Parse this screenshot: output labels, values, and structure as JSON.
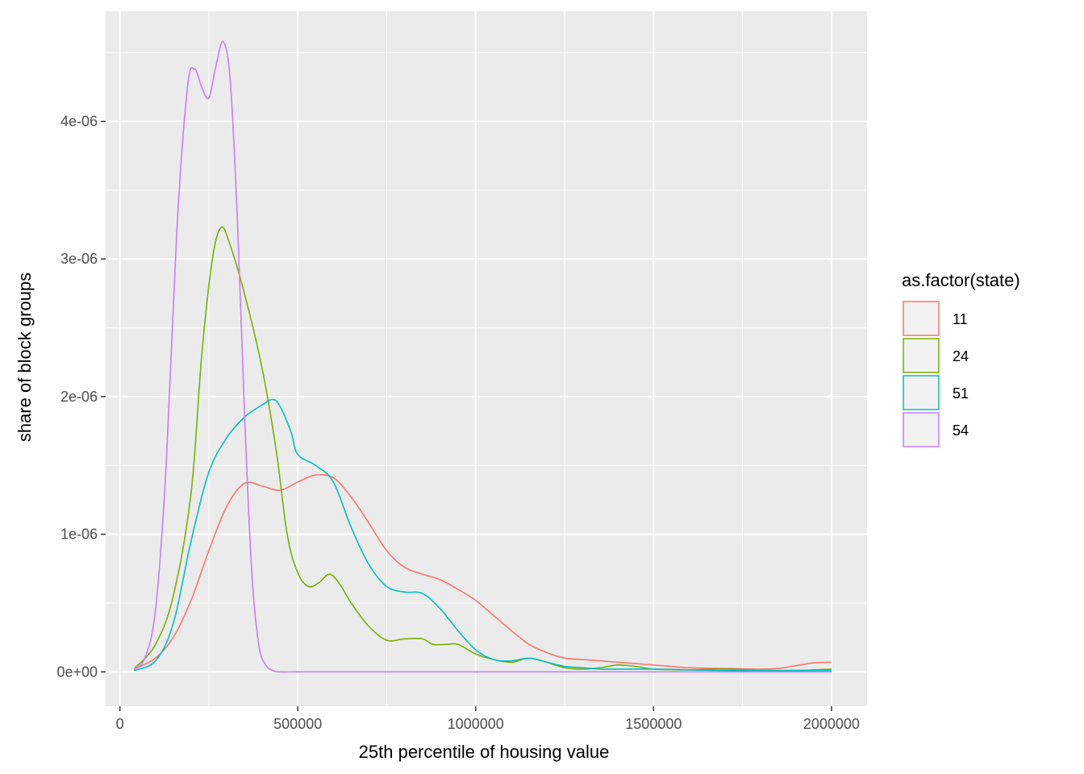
{
  "chart_data": {
    "type": "line",
    "xlabel": "25th percentile of housing value",
    "ylabel": "share of block groups",
    "xlim": [
      -40000,
      2100000
    ],
    "ylim": [
      -2.5e-07,
      4.8e-06
    ],
    "x_ticks": [
      0,
      500000,
      1000000,
      1500000,
      2000000
    ],
    "x_tick_labels": [
      "0",
      "500000",
      "1000000",
      "1500000",
      "2000000"
    ],
    "y_ticks": [
      0,
      1e-06,
      2e-06,
      3e-06,
      4e-06
    ],
    "y_tick_labels": [
      "0e+00",
      "1e-06",
      "2e-06",
      "3e-06",
      "4e-06"
    ],
    "grid": true,
    "legend": {
      "title": "as.factor(state)",
      "position": "right"
    },
    "series": [
      {
        "name": "11",
        "color": "#F8766D",
        "x": [
          40000,
          100000,
          150000,
          200000,
          250000,
          300000,
          350000,
          400000,
          450000,
          500000,
          550000,
          600000,
          650000,
          700000,
          750000,
          800000,
          850000,
          900000,
          950000,
          1000000,
          1050000,
          1100000,
          1150000,
          1200000,
          1250000,
          1300000,
          1350000,
          1400000,
          1450000,
          1500000,
          1600000,
          1700000,
          1800000,
          1850000,
          1900000,
          1950000,
          2000000
        ],
        "y": [
          2e-08,
          1e-07,
          2.5e-07,
          5.2e-07,
          8.8e-07,
          1.2e-06,
          1.37e-06,
          1.35e-06,
          1.32e-06,
          1.38e-06,
          1.43e-06,
          1.41e-06,
          1.27e-06,
          1.08e-06,
          8.8e-07,
          7.6e-07,
          7.1e-07,
          6.7e-07,
          6e-07,
          5.2e-07,
          4.1e-07,
          3e-07,
          2e-07,
          1.4e-07,
          1e-07,
          9e-08,
          8e-08,
          7e-08,
          6e-08,
          5e-08,
          3e-08,
          2.5e-08,
          2e-08,
          2.5e-08,
          4.5e-08,
          6.5e-08,
          7e-08
        ]
      },
      {
        "name": "24",
        "color": "#7CAE00",
        "x": [
          40000,
          100000,
          150000,
          200000,
          230000,
          260000,
          285000,
          310000,
          350000,
          400000,
          440000,
          470000,
          500000,
          530000,
          560000,
          590000,
          620000,
          650000,
          700000,
          750000,
          800000,
          850000,
          880000,
          920000,
          950000,
          1000000,
          1050000,
          1100000,
          1150000,
          1200000,
          1250000,
          1300000,
          1350000,
          1400000,
          1450000,
          1500000,
          1600000,
          1700000,
          1800000,
          1900000,
          2000000
        ],
        "y": [
          2e-08,
          2e-07,
          5.5e-07,
          1.3e-06,
          2.3e-06,
          3e-06,
          3.23e-06,
          3.1e-06,
          2.75e-06,
          2.2e-06,
          1.6e-06,
          1e-06,
          7.2e-07,
          6.2e-07,
          6.5e-07,
          7.1e-07,
          6.3e-07,
          5e-07,
          3.3e-07,
          2.3e-07,
          2.4e-07,
          2.4e-07,
          2e-07,
          2e-07,
          2e-07,
          1.3e-07,
          9e-08,
          7e-08,
          1e-07,
          7e-08,
          3e-08,
          2e-08,
          3e-08,
          5e-08,
          4e-08,
          2e-08,
          1.5e-08,
          2e-08,
          1e-08,
          1e-08,
          2e-08
        ]
      },
      {
        "name": "51",
        "color": "#00BFC4",
        "x": [
          40000,
          100000,
          150000,
          200000,
          250000,
          300000,
          350000,
          400000,
          430000,
          450000,
          480000,
          500000,
          550000,
          600000,
          650000,
          700000,
          750000,
          800000,
          850000,
          900000,
          950000,
          1000000,
          1050000,
          1100000,
          1150000,
          1200000,
          1250000,
          1300000,
          1350000,
          1400000,
          1500000,
          1600000,
          1700000,
          1800000,
          1900000,
          2000000
        ],
        "y": [
          1e-08,
          8e-08,
          3.5e-07,
          9.5e-07,
          1.45e-06,
          1.7e-06,
          1.85e-06,
          1.94e-06,
          1.98e-06,
          1.93e-06,
          1.75e-06,
          1.58e-06,
          1.5e-06,
          1.38e-06,
          1.05e-06,
          7.8e-07,
          6.2e-07,
          5.8e-07,
          5.7e-07,
          4.6e-07,
          3e-07,
          1.6e-07,
          9e-08,
          8e-08,
          1e-07,
          7e-08,
          4e-08,
          3e-08,
          2e-08,
          2e-08,
          2e-08,
          1.5e-08,
          1e-08,
          1e-08,
          1e-08,
          1e-08
        ]
      },
      {
        "name": "54",
        "color": "#C77CFF",
        "x": [
          40000,
          70000,
          100000,
          130000,
          160000,
          190000,
          210000,
          230000,
          250000,
          270000,
          290000,
          310000,
          330000,
          350000,
          370000,
          390000,
          410000,
          430000,
          450000,
          500000,
          600000,
          800000,
          1000000,
          1500000,
          2000000
        ],
        "y": [
          2e-08,
          1e-07,
          4.5e-07,
          1.5e-06,
          3.2e-06,
          4.25e-06,
          4.38e-06,
          4.25e-06,
          4.17e-06,
          4.4e-06,
          4.58e-06,
          4.3e-06,
          3.3e-06,
          1.9e-06,
          7.5e-07,
          2e-07,
          5e-08,
          1e-08,
          0.0,
          0.0,
          0.0,
          0.0,
          0.0,
          0.0,
          0.0
        ]
      }
    ]
  }
}
